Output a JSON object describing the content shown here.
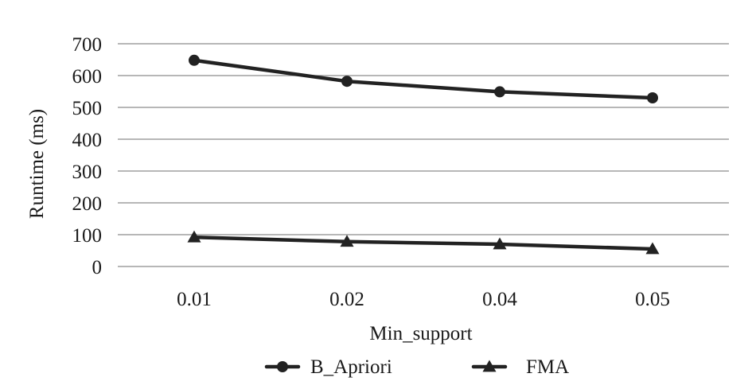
{
  "chart_data": {
    "type": "line",
    "xlabel": "Min_support",
    "ylabel": "Runtime (ms)",
    "categories": [
      "0.01",
      "0.02",
      "0.04",
      "0.05"
    ],
    "ylim": [
      0,
      700
    ],
    "yticks": [
      0,
      100,
      200,
      300,
      400,
      500,
      600,
      700
    ],
    "grid": true,
    "legend_position": "bottom",
    "series": [
      {
        "name": "B_Apriori",
        "marker": "circle",
        "color": "#222222",
        "values": [
          648,
          582,
          549,
          530
        ]
      },
      {
        "name": "FMA",
        "marker": "triangle",
        "color": "#222222",
        "values": [
          92,
          78,
          70,
          55
        ]
      }
    ]
  }
}
